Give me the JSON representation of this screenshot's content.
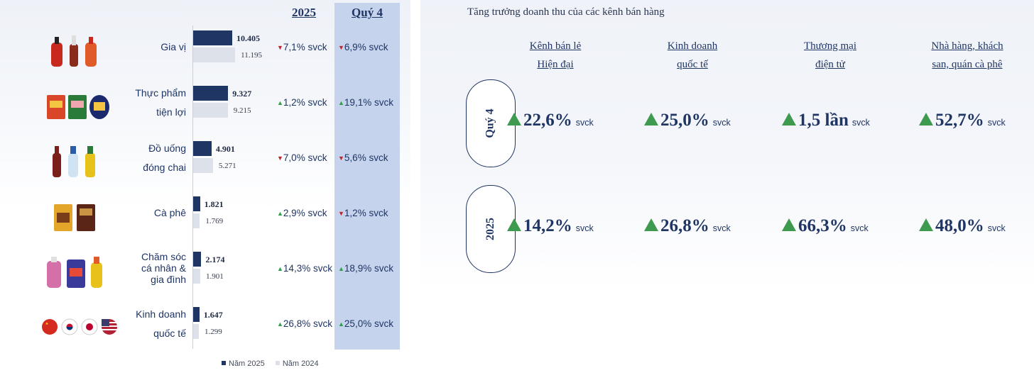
{
  "left_panel": {
    "col_header_year": "2025",
    "col_header_quarter": "Quý 4",
    "legend": {
      "series_2025": "Năm 2025",
      "series_2024": "Năm 2024"
    },
    "colors": {
      "bar_2025": "#1f3564",
      "bar_2024": "#dde1e9",
      "quarter_highlight": "#c5d3ec",
      "up": "#2e9e4a",
      "down": "#c0242c"
    }
  },
  "chart_data": {
    "type": "bar",
    "orientation": "horizontal",
    "categories": [
      "Gia vị",
      "Thực phẩm tiện lợi",
      "Đồ uống đóng chai",
      "Cà phê",
      "Chăm sóc cá nhân & gia đình",
      "Kinh doanh quốc tế"
    ],
    "series": [
      {
        "name": "Năm 2025",
        "values": [
          10405,
          9327,
          4901,
          1821,
          2174,
          1647
        ],
        "labels": [
          "10.405",
          "9.327",
          "4.901",
          "1.821",
          "2.174",
          "1.647"
        ]
      },
      {
        "name": "Năm 2024",
        "values": [
          11195,
          9215,
          5271,
          1769,
          1901,
          1299
        ],
        "labels": [
          "11.195",
          "9.215",
          "5.271",
          "1.769",
          "1.901",
          "1.299"
        ]
      }
    ],
    "rows": [
      {
        "label_lines": [
          "Gia vị"
        ],
        "icon": "condiment-bottles-icon",
        "yoy_2025": {
          "dir": "down",
          "text": "7,1% svck"
        },
        "yoy_q4": {
          "dir": "down",
          "text": "6,9% svck"
        }
      },
      {
        "label_lines": [
          "Thực phẩm",
          "tiện lợi"
        ],
        "icon": "instant-noodle-packs-icon",
        "yoy_2025": {
          "dir": "up",
          "text": "1,2% svck"
        },
        "yoy_q4": {
          "dir": "up",
          "text": "19,1% svck"
        }
      },
      {
        "label_lines": [
          "Đồ uống",
          "đóng chai"
        ],
        "icon": "bottled-drinks-icon",
        "yoy_2025": {
          "dir": "down",
          "text": "7,0% svck"
        },
        "yoy_q4": {
          "dir": "down",
          "text": "5,6% svck"
        }
      },
      {
        "label_lines": [
          "Cà phê"
        ],
        "icon": "coffee-packs-icon",
        "yoy_2025": {
          "dir": "up",
          "text": "2,9% svck"
        },
        "yoy_q4": {
          "dir": "down",
          "text": "1,2% svck"
        }
      },
      {
        "label_lines": [
          "Chăm sóc",
          "cá nhân &",
          "gia đình"
        ],
        "icon": "home-care-bottles-icon",
        "yoy_2025": {
          "dir": "up",
          "text": "14,3% svck"
        },
        "yoy_q4": {
          "dir": "up",
          "text": "18,9% svck"
        }
      },
      {
        "label_lines": [
          "Kinh doanh",
          "quốc tế"
        ],
        "icon": "country-flags-icon",
        "yoy_2025": {
          "dir": "up",
          "text": "26,8% svck"
        },
        "yoy_q4": {
          "dir": "up",
          "text": "25,0% svck"
        }
      }
    ]
  },
  "right_panel": {
    "title": "Tăng trưởng doanh thu của các kênh bán hàng",
    "channels": [
      [
        "Kênh bán lẻ",
        "Hiện đại"
      ],
      [
        "Kinh doanh",
        "quốc tế"
      ],
      [
        "Thương mại",
        "điện tử"
      ],
      [
        "Nhà hàng, khách",
        "san, quán cà phê"
      ]
    ],
    "periods": [
      {
        "label": "Quý 4",
        "values": [
          "22,6%",
          "25,0%",
          "1,5 lần",
          "52,7%"
        ],
        "unit": "svck"
      },
      {
        "label": "2025",
        "values": [
          "14,2%",
          "26,8%",
          "66,3%",
          "48,0%"
        ],
        "unit": "svck"
      }
    ],
    "colors": {
      "up_arrow": "#3d9a4e",
      "text": "#1f3564"
    }
  }
}
